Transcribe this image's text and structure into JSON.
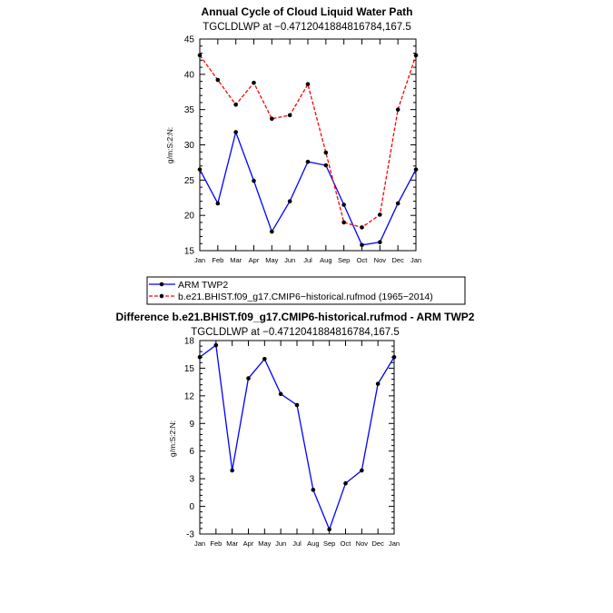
{
  "chart_data": [
    {
      "type": "line",
      "title": "Annual Cycle of Cloud Liquid Water Path",
      "subtitle": "TGCLDLWP  at  −0.4712041884816784,167.5",
      "ylabel": "g/m:S:2:N:",
      "categories": [
        "Jan",
        "Feb",
        "Mar",
        "Apr",
        "May",
        "Jun",
        "Jul",
        "Aug",
        "Sep",
        "Oct",
        "Nov",
        "Dec",
        "Jan"
      ],
      "yticks": [
        15,
        20,
        25,
        30,
        35,
        40,
        45
      ],
      "ylim": [
        15,
        45
      ],
      "series": [
        {
          "name": "ARM TWP2",
          "color": "#0000ff",
          "dashed": false,
          "values": [
            26.5,
            21.7,
            31.8,
            24.9,
            17.7,
            22.0,
            27.6,
            27.1,
            21.5,
            15.8,
            16.2,
            21.7,
            26.5
          ]
        },
        {
          "name": "b.e21.BHIST.f09_g17.CMIP6−historical.rufmod (1965−2014)",
          "color": "#ff0000",
          "dashed": true,
          "values": [
            42.7,
            39.2,
            35.7,
            38.8,
            33.7,
            34.2,
            38.6,
            28.9,
            19.0,
            18.3,
            20.1,
            35.0,
            42.7
          ]
        }
      ],
      "legend": "below"
    },
    {
      "type": "line",
      "title": "Difference b.e21.BHIST.f09_g17.CMIP6-historical.rufmod - ARM TWP2",
      "subtitle": "TGCLDLWP  at  −0.4712041884816784,167.5",
      "ylabel": "g/m:S:2:N:",
      "categories": [
        "Jan",
        "Feb",
        "Mar",
        "Apr",
        "May",
        "Jun",
        "Jul",
        "Aug",
        "Sep",
        "Oct",
        "Nov",
        "Dec",
        "Jan"
      ],
      "yticks": [
        -3,
        0,
        3,
        6,
        9,
        12,
        15,
        18
      ],
      "ylim": [
        -3,
        18
      ],
      "series": [
        {
          "color": "#0000ff",
          "dashed": false,
          "values": [
            16.2,
            17.5,
            3.9,
            13.9,
            16.0,
            12.2,
            11.0,
            1.8,
            -2.5,
            2.5,
            3.9,
            13.3,
            16.2
          ]
        }
      ]
    }
  ]
}
